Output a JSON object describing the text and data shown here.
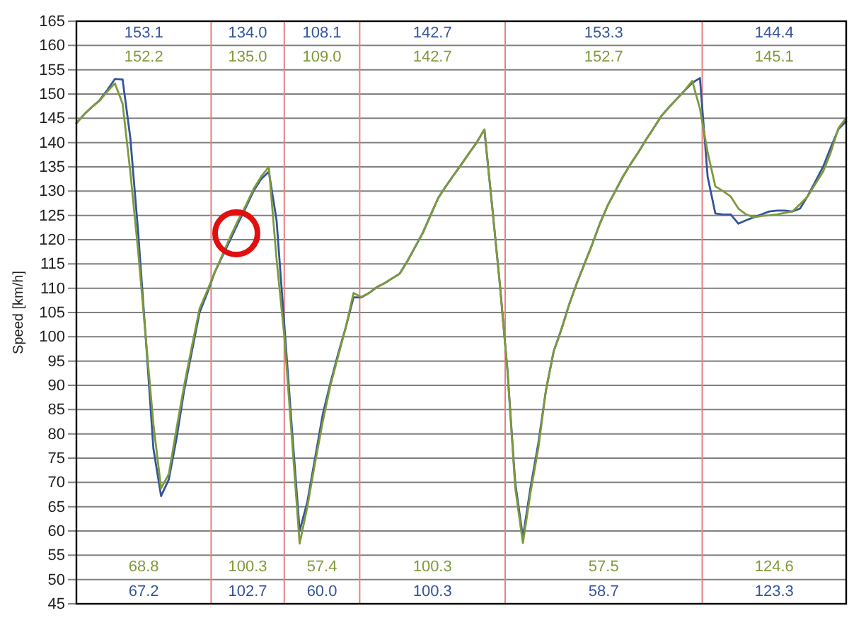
{
  "chart_data": {
    "type": "line",
    "ylabel": "Speed [km/h]",
    "ylim": [
      45,
      165
    ],
    "yticks": [
      45,
      50,
      55,
      60,
      65,
      70,
      75,
      80,
      85,
      90,
      95,
      100,
      105,
      110,
      115,
      120,
      125,
      130,
      135,
      140,
      145,
      150,
      155,
      160,
      165
    ],
    "tick_labels": "y",
    "grid": "y",
    "categories": [
      null,
      null,
      null,
      null,
      null,
      null,
      null,
      null,
      null,
      null,
      null,
      null,
      null,
      null,
      null,
      null,
      null,
      null,
      null,
      null,
      null,
      null,
      null,
      null,
      null,
      null,
      null,
      null,
      null,
      null,
      null,
      null,
      null,
      null,
      null,
      null,
      null,
      null,
      null,
      null,
      null,
      null,
      null,
      null,
      null,
      null,
      null,
      null,
      null,
      null,
      null,
      null,
      null,
      null,
      null,
      null,
      null,
      null,
      null,
      null,
      null,
      null,
      null,
      null,
      null,
      null,
      null,
      null,
      null,
      null,
      null,
      null,
      null,
      null,
      null,
      null,
      null,
      null,
      null,
      null,
      null,
      null,
      null,
      null,
      null,
      null,
      null,
      null,
      null,
      null,
      null,
      null,
      null,
      null,
      null,
      null,
      null,
      null,
      null,
      null,
      null
    ],
    "series": [
      {
        "color": "#34559c",
        "values": [
          144,
          145.8,
          147.3,
          148.7,
          150.8,
          153.1,
          153,
          141,
          122,
          100,
          77,
          67.2,
          70.6,
          79,
          89,
          97,
          105,
          109,
          113.4,
          116.7,
          120,
          123.4,
          126.6,
          130,
          132.5,
          134.0,
          124,
          102.7,
          81,
          60.0,
          66,
          75,
          84,
          90.5,
          96.5,
          102,
          108.1,
          108.1,
          109,
          110.2,
          111,
          112,
          113,
          115.6,
          118.5,
          121.4,
          125,
          128.6,
          131,
          133.3,
          135.5,
          137.8,
          140,
          142.7,
          127,
          111,
          93,
          70,
          58.7,
          69,
          78,
          89,
          97,
          101.5,
          106.6,
          111,
          115,
          119,
          123.3,
          127,
          130,
          133,
          135.6,
          138,
          140.6,
          143,
          145.5,
          147.3,
          149,
          150.7,
          152.3,
          153.3,
          133,
          125.4,
          125.2,
          125.2,
          123.3,
          124,
          124.6,
          125.2,
          125.8,
          126,
          126,
          125.8,
          126.4,
          129,
          132,
          135,
          139,
          142.8,
          144.4
        ]
      },
      {
        "color": "#7f9a3c",
        "values": [
          144,
          145.8,
          147.3,
          148.6,
          150.5,
          152.2,
          148,
          134,
          118,
          100,
          82,
          68.8,
          71.7,
          81,
          90,
          98,
          105.8,
          109.5,
          113.4,
          117,
          120.6,
          124,
          127,
          130.4,
          133,
          135.0,
          116,
          100.3,
          79,
          57.4,
          65,
          74,
          82.5,
          90,
          96,
          102,
          109.0,
          108.2,
          109,
          110.2,
          111,
          112,
          113,
          115.6,
          118.5,
          121.4,
          125,
          128.6,
          131,
          133.3,
          135.5,
          137.8,
          140,
          142.7,
          127,
          111,
          93,
          69,
          57.5,
          68,
          77,
          89,
          97,
          101.5,
          106.6,
          111,
          115,
          119,
          123.3,
          127,
          130,
          133,
          135.6,
          138,
          140.6,
          143,
          145.5,
          147.3,
          149,
          150.7,
          152.7,
          147,
          138,
          131,
          130,
          128.9,
          126.4,
          125.2,
          124.6,
          124.9,
          125,
          125.2,
          125.5,
          125.8,
          127.3,
          128.9,
          131.5,
          134,
          138,
          143,
          145.1
        ]
      }
    ],
    "annotations": [
      "153.1",
      "152.2",
      "68.8",
      "67.2",
      "134.0",
      "135.0",
      "100.3",
      "102.7",
      "108.1",
      "109.0",
      "57.4",
      "60.0",
      "142.7",
      "142.7",
      "100.3",
      "100.3",
      "153.3",
      "152.7",
      "57.5",
      "58.7",
      "144.4",
      "145.1",
      "124.6",
      "123.3"
    ]
  }
}
